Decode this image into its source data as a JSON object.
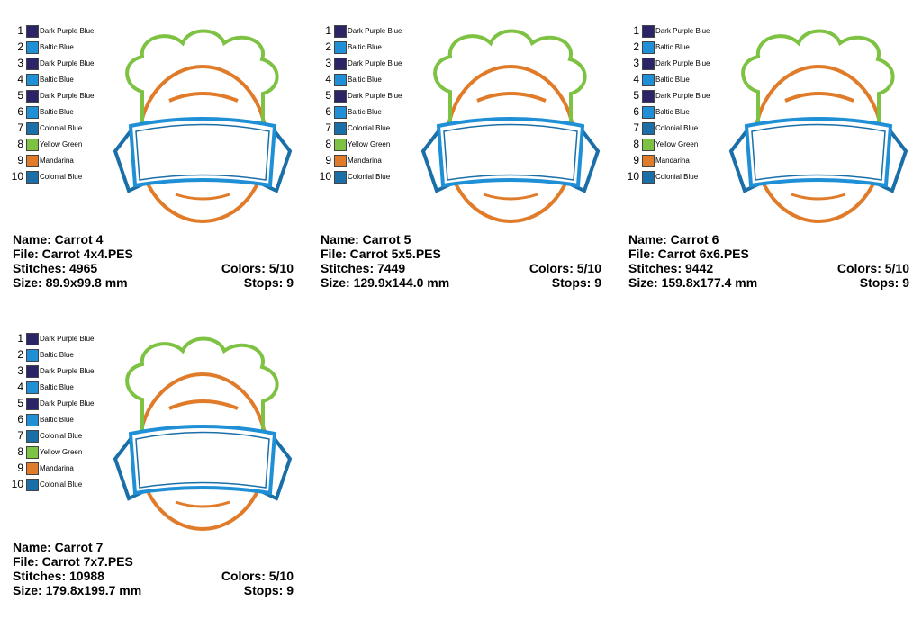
{
  "panels": [
    {
      "colors": [
        {
          "number": "1",
          "name": "Dark Purple Blue",
          "swatch": "#2b2466"
        },
        {
          "number": "2",
          "name": "Baltic Blue",
          "swatch": "#1f8fd6"
        },
        {
          "number": "3",
          "name": "Dark Purple Blue",
          "swatch": "#2b2466"
        },
        {
          "number": "4",
          "name": "Baltic Blue",
          "swatch": "#1f8fd6"
        },
        {
          "number": "5",
          "name": "Dark Purple Blue",
          "swatch": "#2b2466"
        },
        {
          "number": "6",
          "name": "Baltic Blue",
          "swatch": "#1f8fd6"
        },
        {
          "number": "7",
          "name": "Colonial Blue",
          "swatch": "#1a6fa8"
        },
        {
          "number": "8",
          "name": "Yellow Green",
          "swatch": "#7dc242"
        },
        {
          "number": "9",
          "name": "Mandarina",
          "swatch": "#e07b2a"
        },
        {
          "number": "10",
          "name": "Colonial Blue",
          "swatch": "#1a6fa8"
        }
      ],
      "name": "Name: Carrot 4",
      "file": "File: Carrot 4x4.PES",
      "stitches": "Stitches: 4965",
      "size": "Size: 89.9x99.8 mm",
      "colors_count": "Colors: 5/10",
      "stops": "Stops: 9"
    },
    {
      "colors": [
        {
          "number": "1",
          "name": "Dark Purple Blue",
          "swatch": "#2b2466"
        },
        {
          "number": "2",
          "name": "Baltic Blue",
          "swatch": "#1f8fd6"
        },
        {
          "number": "3",
          "name": "Dark Purple Blue",
          "swatch": "#2b2466"
        },
        {
          "number": "4",
          "name": "Baltic Blue",
          "swatch": "#1f8fd6"
        },
        {
          "number": "5",
          "name": "Dark Purple Blue",
          "swatch": "#2b2466"
        },
        {
          "number": "6",
          "name": "Baltic Blue",
          "swatch": "#1f8fd6"
        },
        {
          "number": "7",
          "name": "Colonial Blue",
          "swatch": "#1a6fa8"
        },
        {
          "number": "8",
          "name": "Yellow Green",
          "swatch": "#7dc242"
        },
        {
          "number": "9",
          "name": "Mandarina",
          "swatch": "#e07b2a"
        },
        {
          "number": "10",
          "name": "Colonial Blue",
          "swatch": "#1a6fa8"
        }
      ],
      "name": "Name: Carrot 5",
      "file": "File: Carrot 5x5.PES",
      "stitches": "Stitches: 7449",
      "size": "Size: 129.9x144.0 mm",
      "colors_count": "Colors: 5/10",
      "stops": "Stops: 9"
    },
    {
      "colors": [
        {
          "number": "1",
          "name": "Dark Purple Blue",
          "swatch": "#2b2466"
        },
        {
          "number": "2",
          "name": "Baltic Blue",
          "swatch": "#1f8fd6"
        },
        {
          "number": "3",
          "name": "Dark Purple Blue",
          "swatch": "#2b2466"
        },
        {
          "number": "4",
          "name": "Baltic Blue",
          "swatch": "#1f8fd6"
        },
        {
          "number": "5",
          "name": "Dark Purple Blue",
          "swatch": "#2b2466"
        },
        {
          "number": "6",
          "name": "Baltic Blue",
          "swatch": "#1f8fd6"
        },
        {
          "number": "7",
          "name": "Colonial Blue",
          "swatch": "#1a6fa8"
        },
        {
          "number": "8",
          "name": "Yellow Green",
          "swatch": "#7dc242"
        },
        {
          "number": "9",
          "name": "Mandarina",
          "swatch": "#e07b2a"
        },
        {
          "number": "10",
          "name": "Colonial Blue",
          "swatch": "#1a6fa8"
        }
      ],
      "name": "Name: Carrot 6",
      "file": "File: Carrot 6x6.PES",
      "stitches": "Stitches: 9442",
      "size": "Size: 159.8x177.4 mm",
      "colors_count": "Colors: 5/10",
      "stops": "Stops: 9"
    },
    {
      "colors": [
        {
          "number": "1",
          "name": "Dark Purple Blue",
          "swatch": "#2b2466"
        },
        {
          "number": "2",
          "name": "Baltic Blue",
          "swatch": "#1f8fd6"
        },
        {
          "number": "3",
          "name": "Dark Purple Blue",
          "swatch": "#2b2466"
        },
        {
          "number": "4",
          "name": "Baltic Blue",
          "swatch": "#1f8fd6"
        },
        {
          "number": "5",
          "name": "Dark Purple Blue",
          "swatch": "#2b2466"
        },
        {
          "number": "6",
          "name": "Baltic Blue",
          "swatch": "#1f8fd6"
        },
        {
          "number": "7",
          "name": "Colonial Blue",
          "swatch": "#1a6fa8"
        },
        {
          "number": "8",
          "name": "Yellow Green",
          "swatch": "#7dc242"
        },
        {
          "number": "9",
          "name": "Mandarina",
          "swatch": "#e07b2a"
        },
        {
          "number": "10",
          "name": "Colonial Blue",
          "swatch": "#1a6fa8"
        }
      ],
      "name": "Name: Carrot 7",
      "file": "File: Carrot 7x7.PES",
      "stitches": "Stitches: 10988",
      "size": "Size: 179.8x199.7 mm",
      "colors_count": "Colors: 5/10",
      "stops": "Stops: 9"
    }
  ]
}
